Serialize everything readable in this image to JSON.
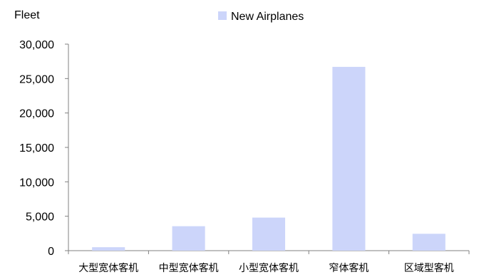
{
  "chart_data": {
    "type": "bar",
    "ylabel": "Fleet",
    "categories": [
      "大型宽体客机",
      "中型宽体客机",
      "小型宽体客机",
      "窄体客机",
      "区域型客机"
    ],
    "series": [
      {
        "name": "New Airplanes",
        "values": [
          500,
          3550,
          4800,
          26700,
          2450
        ],
        "color": "#ccd5fa"
      }
    ],
    "ylim": [
      0,
      30000
    ],
    "yticks": [
      0,
      5000,
      10000,
      15000,
      20000,
      25000,
      30000
    ],
    "ytick_labels": [
      "0",
      "5,000",
      "10,000",
      "15,000",
      "20,000",
      "25,000",
      "30,000"
    ],
    "grid": false,
    "legend": "top-center"
  }
}
